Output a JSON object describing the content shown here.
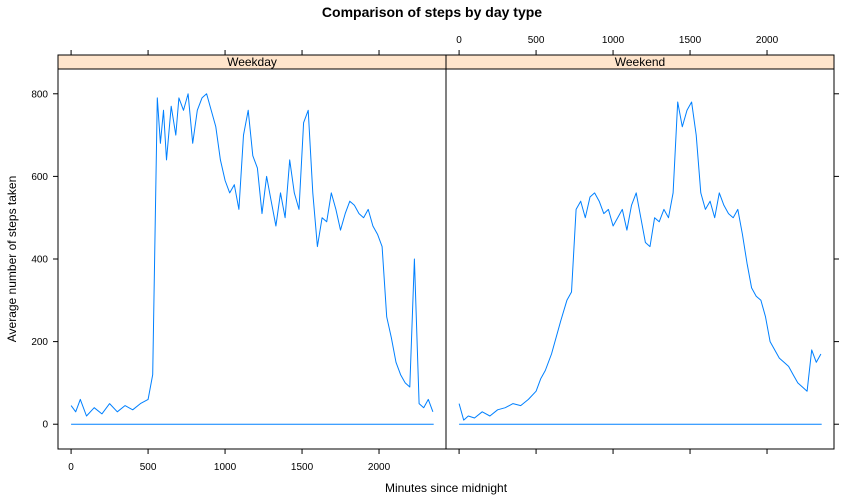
{
  "chart_data": {
    "type": "line",
    "title": "Comparison of steps by day type",
    "xlabel": "Minutes since midnight",
    "ylabel": "Average number of steps taken",
    "xlim": [
      -85,
      2435
    ],
    "ylim": [
      -60,
      860
    ],
    "x_ticks": [
      0,
      500,
      1000,
      1500,
      2000
    ],
    "y_ticks": [
      0,
      200,
      400,
      600,
      800
    ],
    "bottom_tick_labels": [
      "0",
      "500",
      "1000",
      "1500",
      "2000"
    ],
    "top_tick_labels": [
      "0",
      "500",
      "1000",
      "1500",
      "2000"
    ],
    "left_tick_labels": [
      "0",
      "200",
      "400",
      "600",
      "800"
    ],
    "line_color": "#0080ff",
    "strip_color": "#ffe5cc",
    "panels": [
      {
        "name": "Weekday",
        "x": [
          0,
          30,
          60,
          100,
          150,
          200,
          250,
          300,
          350,
          400,
          450,
          500,
          530,
          560,
          580,
          600,
          620,
          650,
          680,
          700,
          730,
          760,
          790,
          820,
          850,
          880,
          910,
          940,
          970,
          1000,
          1030,
          1060,
          1090,
          1120,
          1150,
          1180,
          1210,
          1240,
          1270,
          1300,
          1330,
          1360,
          1390,
          1420,
          1450,
          1480,
          1510,
          1540,
          1570,
          1600,
          1630,
          1660,
          1690,
          1720,
          1750,
          1780,
          1810,
          1840,
          1870,
          1900,
          1930,
          1960,
          1990,
          2020,
          2050,
          2080,
          2110,
          2140,
          2170,
          2200,
          2230,
          2260,
          2290,
          2320,
          2350
        ],
        "y": [
          45,
          30,
          60,
          20,
          40,
          25,
          50,
          30,
          45,
          35,
          50,
          60,
          120,
          790,
          680,
          760,
          640,
          770,
          700,
          790,
          760,
          800,
          680,
          760,
          790,
          800,
          760,
          720,
          640,
          590,
          560,
          580,
          520,
          700,
          760,
          650,
          620,
          510,
          600,
          540,
          480,
          560,
          500,
          640,
          560,
          520,
          730,
          760,
          560,
          430,
          500,
          490,
          560,
          520,
          470,
          510,
          540,
          530,
          510,
          500,
          520,
          480,
          460,
          430,
          260,
          210,
          150,
          120,
          100,
          90,
          400,
          50,
          40,
          60,
          30
        ]
      },
      {
        "name": "Weekend",
        "x": [
          0,
          30,
          60,
          100,
          150,
          200,
          250,
          300,
          350,
          400,
          450,
          500,
          530,
          560,
          600,
          630,
          660,
          700,
          730,
          760,
          790,
          820,
          850,
          880,
          910,
          940,
          970,
          1000,
          1030,
          1060,
          1090,
          1120,
          1150,
          1180,
          1210,
          1240,
          1270,
          1300,
          1330,
          1360,
          1390,
          1420,
          1450,
          1480,
          1510,
          1540,
          1570,
          1600,
          1630,
          1660,
          1690,
          1720,
          1750,
          1780,
          1810,
          1840,
          1870,
          1900,
          1930,
          1960,
          1990,
          2020,
          2050,
          2080,
          2110,
          2140,
          2170,
          2200,
          2230,
          2260,
          2290,
          2320,
          2350
        ],
        "y": [
          50,
          10,
          20,
          15,
          30,
          20,
          35,
          40,
          50,
          45,
          60,
          80,
          110,
          130,
          170,
          210,
          250,
          300,
          320,
          520,
          540,
          500,
          550,
          560,
          540,
          510,
          520,
          480,
          500,
          520,
          470,
          530,
          560,
          500,
          440,
          430,
          500,
          490,
          520,
          500,
          560,
          780,
          720,
          760,
          780,
          700,
          560,
          520,
          540,
          500,
          560,
          530,
          510,
          500,
          520,
          460,
          390,
          330,
          310,
          300,
          260,
          200,
          180,
          160,
          150,
          140,
          120,
          100,
          90,
          80,
          180,
          150,
          170
        ]
      }
    ]
  }
}
